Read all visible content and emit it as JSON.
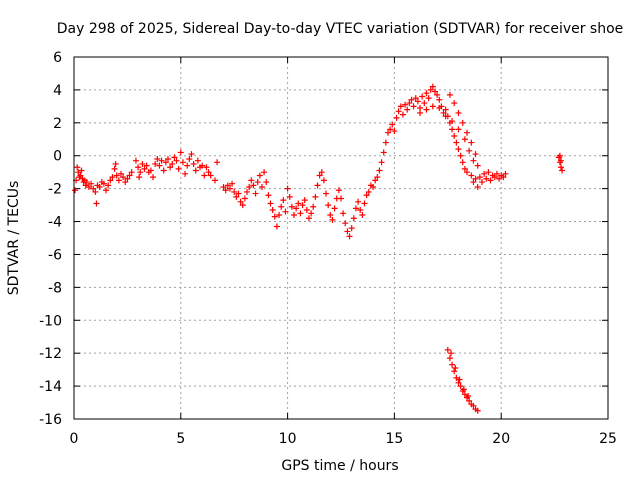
{
  "colors": {
    "series": "#ff0000",
    "grid": "#a0a0a0",
    "frame": "#000000",
    "background": "#ffffff"
  },
  "chart_data": {
    "type": "scatter",
    "title": "Day 298 of 2025, Sidereal Day-to-day VTEC variation (SDTVAR) for receiver shoe",
    "xlabel": "GPS time / hours",
    "ylabel": "SDTVAR / TECUs",
    "xlim": [
      0,
      25
    ],
    "ylim": [
      -16,
      6
    ],
    "grid": true,
    "marker": "+",
    "x_ticks": [
      0,
      5,
      10,
      15,
      20,
      25
    ],
    "y_ticks": [
      6,
      4,
      2,
      0,
      -2,
      -4,
      -6,
      -8,
      -10,
      -12,
      -14,
      -16
    ],
    "x_tick_labels": [
      "0",
      "5",
      "10",
      "15",
      "20",
      "25"
    ],
    "y_tick_labels": [
      "6",
      "4",
      "2",
      "0",
      "-2",
      "-4",
      "-6",
      "-8",
      "-10",
      "-12",
      "-14",
      "-16"
    ],
    "series": [
      {
        "name": "SDTVAR",
        "points": [
          [
            0.05,
            -2.1
          ],
          [
            0.1,
            -1.5
          ],
          [
            0.15,
            -0.7
          ],
          [
            0.2,
            -1.0
          ],
          [
            0.25,
            -1.3
          ],
          [
            0.3,
            -1.2
          ],
          [
            0.35,
            -0.9
          ],
          [
            0.4,
            -1.4
          ],
          [
            0.45,
            -1.6
          ],
          [
            0.5,
            -1.5
          ],
          [
            0.55,
            -1.8
          ],
          [
            0.6,
            -1.6
          ],
          [
            0.7,
            -1.9
          ],
          [
            0.8,
            -1.7
          ],
          [
            0.9,
            -2.0
          ],
          [
            1.0,
            -2.2
          ],
          [
            1.05,
            -2.9
          ],
          [
            1.1,
            -1.8
          ],
          [
            1.2,
            -1.9
          ],
          [
            1.3,
            -1.6
          ],
          [
            1.4,
            -1.7
          ],
          [
            1.5,
            -2.1
          ],
          [
            1.6,
            -1.8
          ],
          [
            1.7,
            -1.5
          ],
          [
            1.8,
            -1.3
          ],
          [
            1.9,
            -0.8
          ],
          [
            1.95,
            -0.5
          ],
          [
            2.0,
            -1.2
          ],
          [
            2.1,
            -1.5
          ],
          [
            2.2,
            -1.1
          ],
          [
            2.3,
            -1.3
          ],
          [
            2.4,
            -1.6
          ],
          [
            2.5,
            -1.4
          ],
          [
            2.6,
            -1.2
          ],
          [
            2.7,
            -1.0
          ],
          [
            2.9,
            -0.3
          ],
          [
            3.0,
            -0.7
          ],
          [
            3.05,
            -1.3
          ],
          [
            3.1,
            -1.0
          ],
          [
            3.2,
            -0.5
          ],
          [
            3.3,
            -0.8
          ],
          [
            3.4,
            -0.6
          ],
          [
            3.5,
            -1.0
          ],
          [
            3.6,
            -0.9
          ],
          [
            3.7,
            -1.3
          ],
          [
            3.8,
            -0.5
          ],
          [
            3.9,
            -0.2
          ],
          [
            4.0,
            -0.6
          ],
          [
            4.1,
            -0.3
          ],
          [
            4.2,
            -0.9
          ],
          [
            4.3,
            -0.4
          ],
          [
            4.4,
            -0.2
          ],
          [
            4.5,
            -0.7
          ],
          [
            4.6,
            -0.5
          ],
          [
            4.7,
            -0.1
          ],
          [
            4.8,
            -0.3
          ],
          [
            4.9,
            -0.8
          ],
          [
            5.0,
            0.2
          ],
          [
            5.1,
            -0.4
          ],
          [
            5.2,
            -1.1
          ],
          [
            5.3,
            -0.6
          ],
          [
            5.4,
            -0.2
          ],
          [
            5.5,
            0.1
          ],
          [
            5.6,
            -0.5
          ],
          [
            5.7,
            -0.9
          ],
          [
            5.8,
            -0.3
          ],
          [
            5.9,
            -0.7
          ],
          [
            6.0,
            -0.6
          ],
          [
            6.1,
            -1.2
          ],
          [
            6.2,
            -0.7
          ],
          [
            6.3,
            -1.0
          ],
          [
            6.4,
            -1.2
          ],
          [
            6.6,
            -1.5
          ],
          [
            6.7,
            -0.4
          ],
          [
            7.0,
            -1.9
          ],
          [
            7.1,
            -2.1
          ],
          [
            7.2,
            -1.8
          ],
          [
            7.3,
            -2.0
          ],
          [
            7.4,
            -1.7
          ],
          [
            7.5,
            -2.2
          ],
          [
            7.6,
            -2.5
          ],
          [
            7.7,
            -2.3
          ],
          [
            7.8,
            -2.8
          ],
          [
            7.9,
            -3.0
          ],
          [
            8.0,
            -2.6
          ],
          [
            8.1,
            -2.2
          ],
          [
            8.2,
            -1.9
          ],
          [
            8.3,
            -1.5
          ],
          [
            8.4,
            -1.8
          ],
          [
            8.5,
            -2.3
          ],
          [
            8.6,
            -1.6
          ],
          [
            8.7,
            -1.2
          ],
          [
            8.8,
            -1.9
          ],
          [
            8.9,
            -1.0
          ],
          [
            9.0,
            -1.6
          ],
          [
            9.1,
            -2.4
          ],
          [
            9.2,
            -2.9
          ],
          [
            9.3,
            -3.3
          ],
          [
            9.4,
            -3.7
          ],
          [
            9.5,
            -4.3
          ],
          [
            9.6,
            -3.6
          ],
          [
            9.7,
            -3.1
          ],
          [
            9.8,
            -2.7
          ],
          [
            9.9,
            -3.4
          ],
          [
            10.0,
            -2.0
          ],
          [
            10.1,
            -2.5
          ],
          [
            10.2,
            -3.1
          ],
          [
            10.3,
            -3.6
          ],
          [
            10.4,
            -3.2
          ],
          [
            10.5,
            -2.9
          ],
          [
            10.6,
            -3.5
          ],
          [
            10.7,
            -3.0
          ],
          [
            10.8,
            -2.7
          ],
          [
            10.9,
            -3.3
          ],
          [
            11.0,
            -3.8
          ],
          [
            11.1,
            -3.5
          ],
          [
            11.2,
            -3.1
          ],
          [
            11.3,
            -2.5
          ],
          [
            11.4,
            -1.8
          ],
          [
            11.5,
            -1.2
          ],
          [
            11.6,
            -1.0
          ],
          [
            11.7,
            -1.5
          ],
          [
            11.8,
            -2.3
          ],
          [
            11.9,
            -3.0
          ],
          [
            12.0,
            -3.6
          ],
          [
            12.1,
            -3.9
          ],
          [
            12.2,
            -3.2
          ],
          [
            12.3,
            -2.6
          ],
          [
            12.4,
            -2.1
          ],
          [
            12.5,
            -2.6
          ],
          [
            12.6,
            -3.5
          ],
          [
            12.7,
            -4.1
          ],
          [
            12.8,
            -4.6
          ],
          [
            12.9,
            -4.9
          ],
          [
            13.0,
            -4.4
          ],
          [
            13.1,
            -3.8
          ],
          [
            13.2,
            -3.2
          ],
          [
            13.3,
            -2.8
          ],
          [
            13.4,
            -3.3
          ],
          [
            13.5,
            -3.6
          ],
          [
            13.6,
            -2.9
          ],
          [
            13.7,
            -2.4
          ],
          [
            13.8,
            -2.2
          ],
          [
            13.9,
            -1.8
          ],
          [
            14.0,
            -1.9
          ],
          [
            14.1,
            -1.5
          ],
          [
            14.2,
            -1.3
          ],
          [
            14.3,
            -0.9
          ],
          [
            14.4,
            -0.4
          ],
          [
            14.5,
            0.2
          ],
          [
            14.6,
            0.8
          ],
          [
            14.7,
            1.4
          ],
          [
            14.8,
            1.6
          ],
          [
            14.9,
            1.9
          ],
          [
            15.0,
            1.5
          ],
          [
            15.1,
            2.3
          ],
          [
            15.2,
            2.7
          ],
          [
            15.3,
            3.0
          ],
          [
            15.4,
            2.5
          ],
          [
            15.5,
            3.1
          ],
          [
            15.6,
            2.8
          ],
          [
            15.7,
            3.2
          ],
          [
            15.8,
            3.4
          ],
          [
            15.9,
            3.0
          ],
          [
            16.0,
            3.5
          ],
          [
            16.1,
            3.3
          ],
          [
            16.2,
            2.9
          ],
          [
            16.3,
            3.6
          ],
          [
            16.4,
            3.2
          ],
          [
            16.5,
            3.8
          ],
          [
            16.6,
            3.5
          ],
          [
            16.7,
            4.0
          ],
          [
            16.8,
            4.2
          ],
          [
            16.9,
            3.9
          ],
          [
            17.0,
            3.7
          ],
          [
            17.1,
            3.4
          ],
          [
            17.2,
            3.0
          ],
          [
            17.3,
            2.6
          ],
          [
            17.4,
            2.8
          ],
          [
            17.5,
            2.4
          ],
          [
            17.6,
            2.0
          ],
          [
            17.7,
            1.6
          ],
          [
            17.8,
            1.2
          ],
          [
            17.9,
            0.8
          ],
          [
            18.0,
            0.4
          ],
          [
            18.1,
            0.0
          ],
          [
            18.2,
            -0.4
          ],
          [
            18.3,
            -0.8
          ],
          [
            18.4,
            -1.0
          ],
          [
            16.2,
            2.6
          ],
          [
            16.5,
            2.8
          ],
          [
            16.8,
            3.0
          ],
          [
            17.1,
            2.9
          ],
          [
            17.4,
            2.4
          ],
          [
            17.7,
            2.1
          ],
          [
            18.0,
            1.6
          ],
          [
            18.3,
            1.0
          ],
          [
            18.5,
            0.3
          ],
          [
            18.7,
            -0.3
          ],
          [
            17.6,
            3.7
          ],
          [
            17.8,
            3.2
          ],
          [
            18.0,
            2.6
          ],
          [
            18.2,
            2.0
          ],
          [
            18.4,
            1.4
          ],
          [
            18.6,
            0.8
          ],
          [
            18.8,
            0.1
          ],
          [
            18.9,
            -0.6
          ],
          [
            18.6,
            -1.2
          ],
          [
            18.7,
            -1.6
          ],
          [
            18.8,
            -1.4
          ],
          [
            18.9,
            -1.9
          ],
          [
            19.0,
            -1.3
          ],
          [
            19.1,
            -1.6
          ],
          [
            19.2,
            -1.1
          ],
          [
            19.3,
            -1.4
          ],
          [
            19.4,
            -1.0
          ],
          [
            19.5,
            -1.5
          ],
          [
            19.6,
            -1.2
          ],
          [
            19.7,
            -1.3
          ],
          [
            19.8,
            -1.1
          ],
          [
            19.9,
            -1.4
          ],
          [
            20.0,
            -1.2
          ],
          [
            20.1,
            -1.3
          ],
          [
            20.2,
            -1.1
          ],
          [
            22.7,
            -0.1
          ],
          [
            22.75,
            -0.4
          ],
          [
            22.8,
            -0.7
          ],
          [
            22.85,
            -0.9
          ],
          [
            22.75,
            0.0
          ],
          [
            22.8,
            -0.3
          ],
          [
            17.5,
            -11.8
          ],
          [
            17.6,
            -12.3
          ],
          [
            17.7,
            -12.7
          ],
          [
            17.8,
            -13.1
          ],
          [
            17.9,
            -13.5
          ],
          [
            18.0,
            -13.8
          ],
          [
            18.1,
            -14.0
          ],
          [
            18.2,
            -14.3
          ],
          [
            18.3,
            -14.5
          ],
          [
            18.4,
            -14.7
          ],
          [
            18.5,
            -14.9
          ],
          [
            18.6,
            -15.1
          ],
          [
            18.7,
            -15.2
          ],
          [
            18.8,
            -15.4
          ],
          [
            18.9,
            -15.5
          ],
          [
            17.65,
            -12.0
          ],
          [
            17.85,
            -12.9
          ],
          [
            18.05,
            -13.6
          ],
          [
            18.25,
            -14.2
          ],
          [
            18.45,
            -14.6
          ]
        ]
      }
    ]
  }
}
